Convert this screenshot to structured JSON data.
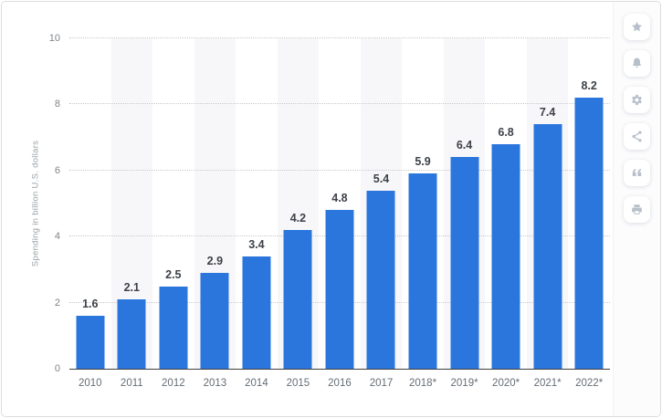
{
  "chart_data": {
    "type": "bar",
    "categories": [
      "2010",
      "2011",
      "2012",
      "2013",
      "2014",
      "2015",
      "2016",
      "2017",
      "2018*",
      "2019*",
      "2020*",
      "2021*",
      "2022*"
    ],
    "values": [
      1.6,
      2.1,
      2.5,
      2.9,
      3.4,
      4.2,
      4.8,
      5.4,
      5.9,
      6.4,
      6.8,
      7.4,
      8.2
    ],
    "title": "",
    "xlabel": "",
    "ylabel": "Spending in billion U.S. dollars",
    "ylim": [
      0,
      10
    ],
    "yticks": [
      0,
      2,
      4,
      6,
      8,
      10
    ],
    "grid": "horizontal-dotted",
    "legend": "none",
    "bar_color": "#2b76dc",
    "band_color": "#f7f7f9",
    "value_label_color": "#3d4149",
    "alternating_column_bands": true
  },
  "sidebar": {
    "buttons": [
      {
        "name": "favorite",
        "icon": "star-icon"
      },
      {
        "name": "notifications",
        "icon": "bell-icon"
      },
      {
        "name": "settings",
        "icon": "gear-icon"
      },
      {
        "name": "share",
        "icon": "share-icon"
      },
      {
        "name": "cite",
        "icon": "quote-icon"
      },
      {
        "name": "print",
        "icon": "printer-icon"
      }
    ]
  }
}
